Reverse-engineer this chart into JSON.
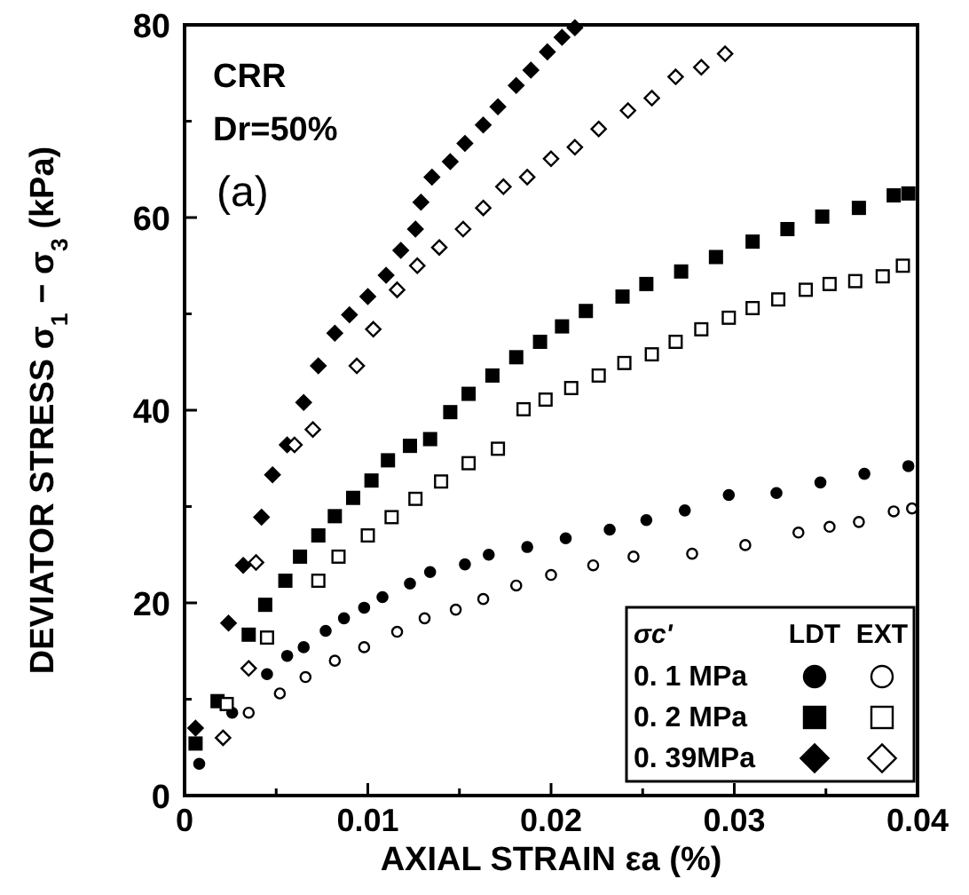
{
  "chart_data": {
    "type": "scatter",
    "xlabel": "AXIAL STRAIN εa (%)",
    "ylabel": "DEVIATOR STRESS σ$_{1}$ − σ$_{3}$ (kPa)",
    "legend_title": "σc'",
    "legend": "bottom right",
    "grid": false,
    "xlim": [
      0,
      0.04
    ],
    "xticks": [
      0,
      {
        "value": 0.005,
        "label": null
      },
      0.01,
      {
        "value": 0.015,
        "label": null
      },
      0.02,
      {
        "value": 0.025,
        "label": null
      },
      0.03,
      {
        "value": 0.035,
        "label": null
      },
      0.04
    ],
    "ylim": [
      0,
      80
    ],
    "yticks": [
      0,
      {
        "value": 10,
        "label": null
      },
      20,
      {
        "value": 30,
        "label": null
      },
      40,
      {
        "value": 50,
        "label": null
      },
      60,
      {
        "value": 70,
        "label": null
      },
      80
    ],
    "annotations": [
      "CRR",
      "Dr=50%",
      "(a)",
      "LDT",
      "EXT"
    ],
    "series": [
      {
        "name": "0. 1 MPa",
        "color": "#000000",
        "marker": "circle",
        "x": [
          0.0008,
          0.0026,
          0.0045,
          0.0056,
          0.0065,
          0.0077,
          0.0087,
          0.0098,
          0.0108,
          0.0123,
          0.0134,
          0.0153,
          0.0166,
          0.0187,
          0.0208,
          0.0232,
          0.0252,
          0.0273,
          0.0297,
          0.0323,
          0.0347,
          0.0371,
          0.0395
        ],
        "values": [
          3.3,
          8.6,
          12.6,
          14.5,
          15.4,
          17.1,
          18.4,
          19.5,
          20.6,
          22,
          23.2,
          24,
          25,
          25.8,
          26.7,
          27.6,
          28.6,
          29.6,
          31.2,
          31.4,
          32.5,
          33.4,
          34.2
        ]
      },
      {
        "color": "#000000",
        "marker": "circle",
        "x": [
          0.0035,
          0.0052,
          0.0066,
          0.0082,
          0.0098,
          0.0116,
          0.0131,
          0.0148,
          0.0163,
          0.0181,
          0.02,
          0.0223,
          0.0245,
          0.0277,
          0.0306,
          0.0335,
          0.0352,
          0.0368,
          0.0387,
          0.0397
        ],
        "values": [
          8.6,
          10.6,
          12.3,
          14,
          15.4,
          17,
          18.4,
          19.3,
          20.4,
          21.8,
          22.9,
          23.9,
          24.8,
          25.1,
          26,
          27.3,
          27.9,
          28.4,
          29.5,
          29.8
        ]
      },
      {
        "name": "0. 2 MPa",
        "color": "#000000",
        "marker": "square",
        "x": [
          0.0006,
          0.0018,
          0.0035,
          0.0044,
          0.0055,
          0.0063,
          0.0073,
          0.0082,
          0.0092,
          0.0102,
          0.0111,
          0.0123,
          0.0134,
          0.0145,
          0.0155,
          0.0168,
          0.0181,
          0.0194,
          0.0206,
          0.0219,
          0.0239,
          0.0252,
          0.0271,
          0.029,
          0.031,
          0.0329,
          0.0348,
          0.0368,
          0.0387,
          0.0395
        ],
        "values": [
          5.4,
          9.8,
          16.7,
          19.8,
          22.3,
          24.8,
          27,
          29,
          30.9,
          32.7,
          34.8,
          36.3,
          37,
          39.8,
          41.7,
          43.6,
          45.5,
          47.1,
          48.7,
          50.3,
          51.8,
          53.1,
          54.4,
          55.9,
          57.5,
          58.8,
          60.1,
          61,
          62.3,
          62.5
        ]
      },
      {
        "color": "#000000",
        "marker": "square",
        "x": [
          0.0023,
          0.0045,
          0.0073,
          0.0084,
          0.01,
          0.0113,
          0.0126,
          0.014,
          0.0155,
          0.0171,
          0.0185,
          0.0197,
          0.0211,
          0.0226,
          0.024,
          0.0255,
          0.0268,
          0.0282,
          0.0297,
          0.031,
          0.0324,
          0.0339,
          0.0352,
          0.0366,
          0.0381,
          0.0392
        ],
        "values": [
          9.5,
          16.4,
          22.3,
          24.8,
          27,
          28.9,
          30.8,
          32.6,
          34.5,
          36,
          40.1,
          41.1,
          42.3,
          43.6,
          44.9,
          45.8,
          47.1,
          48.4,
          49.6,
          50.6,
          51.5,
          52.5,
          53.1,
          53.4,
          53.9,
          55
        ]
      },
      {
        "name": "0. 39MPa",
        "color": "#000000",
        "marker": "diamond",
        "x": [
          0.0006,
          0.0024,
          0.0032,
          0.0042,
          0.0048,
          0.0056,
          0.0065,
          0.0073,
          0.0082,
          0.009,
          0.01,
          0.011,
          0.0118,
          0.0126,
          0.0129,
          0.0135,
          0.0145,
          0.0153,
          0.0163,
          0.0171,
          0.0181,
          0.0189,
          0.0198,
          0.0206,
          0.0213
        ],
        "values": [
          7,
          17.9,
          23.9,
          28.9,
          33.3,
          36.4,
          40.8,
          44.6,
          48,
          49.9,
          51.8,
          54,
          56.6,
          58.8,
          61.6,
          64.2,
          65.8,
          67.7,
          69.6,
          71.5,
          73.7,
          75.3,
          77.2,
          78.7,
          79.7
        ]
      },
      {
        "color": "#000000",
        "marker": "diamond",
        "x": [
          0.0021,
          0.0035,
          0.0039,
          0.006,
          0.007,
          0.0094,
          0.0103,
          0.0116,
          0.0127,
          0.0139,
          0.0152,
          0.0163,
          0.0174,
          0.0187,
          0.02,
          0.0213,
          0.0226,
          0.0242,
          0.0255,
          0.0268,
          0.0282,
          0.0295
        ],
        "values": [
          6,
          13.2,
          24.2,
          36.4,
          38,
          44.6,
          48.4,
          52.5,
          55,
          56.9,
          58.8,
          61,
          63.2,
          64.2,
          66.1,
          67.3,
          69.2,
          71.1,
          72.4,
          74.6,
          75.6,
          77
        ]
      }
    ]
  }
}
